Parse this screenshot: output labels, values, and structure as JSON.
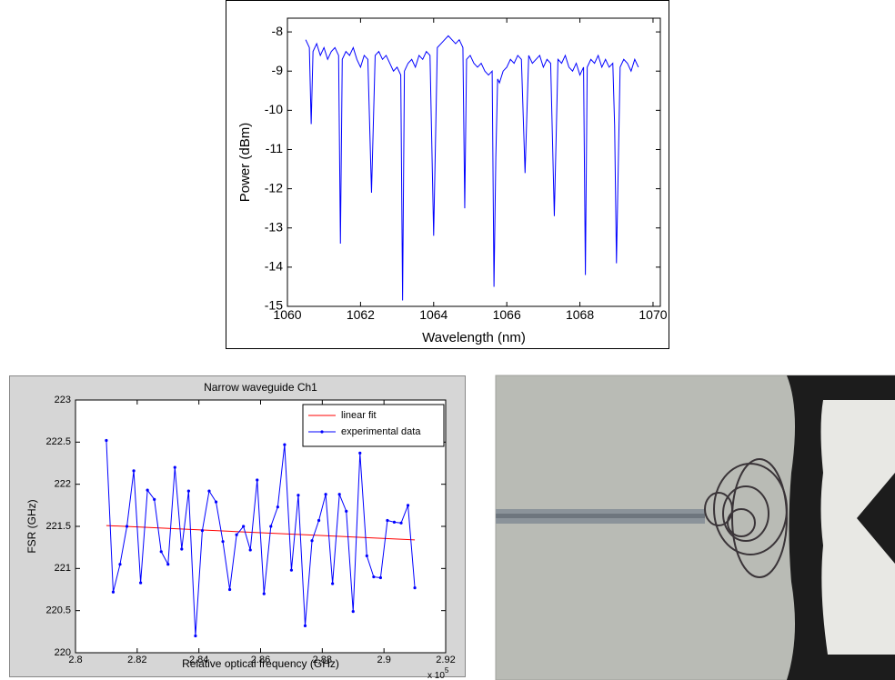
{
  "chart_data": [
    {
      "type": "line",
      "x_label": "Wavelength (nm)",
      "y_label": "Power (dBm)",
      "x": [
        1060.5,
        1060.6,
        1060.65,
        1060.7,
        1060.8,
        1060.9,
        1061.0,
        1061.1,
        1061.2,
        1061.3,
        1061.4,
        1061.45,
        1061.5,
        1061.6,
        1061.7,
        1061.8,
        1061.9,
        1062.0,
        1062.1,
        1062.2,
        1062.3,
        1062.4,
        1062.5,
        1062.6,
        1062.7,
        1062.8,
        1062.9,
        1063.0,
        1063.1,
        1063.15,
        1063.2,
        1063.3,
        1063.4,
        1063.5,
        1063.6,
        1063.7,
        1063.8,
        1063.9,
        1064.0,
        1064.1,
        1064.2,
        1064.3,
        1064.4,
        1064.5,
        1064.6,
        1064.7,
        1064.8,
        1064.85,
        1064.9,
        1065.0,
        1065.1,
        1065.2,
        1065.3,
        1065.4,
        1065.5,
        1065.6,
        1065.65,
        1065.7,
        1065.75,
        1065.8,
        1065.9,
        1066.0,
        1066.1,
        1066.2,
        1066.3,
        1066.4,
        1066.5,
        1066.6,
        1066.7,
        1066.8,
        1066.9,
        1067.0,
        1067.1,
        1067.2,
        1067.3,
        1067.4,
        1067.5,
        1067.6,
        1067.7,
        1067.8,
        1067.9,
        1068.0,
        1068.1,
        1068.15,
        1068.2,
        1068.3,
        1068.4,
        1068.5,
        1068.6,
        1068.7,
        1068.8,
        1068.9,
        1068.95,
        1069.0,
        1069.1,
        1069.2,
        1069.3,
        1069.4,
        1069.5,
        1069.6
      ],
      "series": [
        {
          "color": "#0000ff",
          "values": [
            -8.2,
            -8.4,
            -10.35,
            -8.5,
            -8.3,
            -8.6,
            -8.4,
            -8.7,
            -8.5,
            -8.4,
            -8.6,
            -13.4,
            -8.7,
            -8.5,
            -8.6,
            -8.4,
            -8.7,
            -8.9,
            -8.6,
            -8.7,
            -12.1,
            -8.6,
            -8.5,
            -8.7,
            -8.6,
            -8.8,
            -9.0,
            -8.9,
            -9.1,
            -14.85,
            -9.0,
            -8.8,
            -8.7,
            -8.9,
            -8.6,
            -8.7,
            -8.5,
            -8.6,
            -13.2,
            -8.4,
            -8.3,
            -8.2,
            -8.1,
            -8.2,
            -8.3,
            -8.2,
            -8.4,
            -12.5,
            -8.7,
            -8.6,
            -8.8,
            -8.9,
            -8.8,
            -9.0,
            -9.1,
            -9.0,
            -14.5,
            -11.2,
            -9.2,
            -9.3,
            -9.0,
            -8.9,
            -8.7,
            -8.8,
            -8.6,
            -8.7,
            -11.6,
            -8.6,
            -8.8,
            -8.7,
            -8.6,
            -8.9,
            -8.7,
            -8.8,
            -12.7,
            -8.7,
            -8.8,
            -8.6,
            -8.9,
            -9.0,
            -8.8,
            -9.1,
            -8.9,
            -14.2,
            -8.9,
            -8.7,
            -8.8,
            -8.6,
            -8.9,
            -8.7,
            -8.9,
            -8.8,
            -10.4,
            -13.9,
            -8.9,
            -8.7,
            -8.8,
            -9.0,
            -8.7,
            -8.9
          ]
        }
      ],
      "xlim": [
        1060,
        1070.2
      ],
      "xticks": [
        1060,
        1062,
        1064,
        1066,
        1068,
        1070
      ],
      "ylim": [
        -15,
        -7.65
      ],
      "yticks": [
        -15,
        -14,
        -13,
        -12,
        -11,
        -10,
        -9,
        -8
      ]
    },
    {
      "type": "line",
      "title": "Narrow waveguide Ch1",
      "x_label": "Relative optical frequency (GHz)",
      "y_label": "FSR (GHz)",
      "x_multiplier": "x 10",
      "x_multiplier_exp": "5",
      "series": [
        {
          "name": "linear fit",
          "color": "#ff0000",
          "x": [
            281000,
            291000
          ],
          "values": [
            221.51,
            221.34
          ]
        },
        {
          "name": "experimental data",
          "color": "#0000ff",
          "marker": true,
          "x": [
            281000,
            281222,
            281444,
            281667,
            281889,
            282111,
            282333,
            282556,
            282778,
            283000,
            283222,
            283444,
            283667,
            283889,
            284111,
            284333,
            284556,
            284778,
            285000,
            285222,
            285444,
            285667,
            285889,
            286111,
            286333,
            286556,
            286778,
            287000,
            287222,
            287444,
            287667,
            287889,
            288111,
            288333,
            288556,
            288778,
            289000,
            289222,
            289444,
            289667,
            289889,
            290111,
            290333,
            290556,
            290778,
            291000
          ],
          "values": [
            222.52,
            220.72,
            221.05,
            221.5,
            222.16,
            220.83,
            221.93,
            221.82,
            221.2,
            221.05,
            222.2,
            221.23,
            221.92,
            220.2,
            221.45,
            221.92,
            221.79,
            221.32,
            220.75,
            221.4,
            221.5,
            221.22,
            222.05,
            220.7,
            221.5,
            221.73,
            222.47,
            220.98,
            221.87,
            220.32,
            221.33,
            221.57,
            221.88,
            220.82,
            221.88,
            221.68,
            220.49,
            222.37,
            221.15,
            220.9,
            220.89,
            221.57,
            221.55,
            221.54,
            221.75,
            220.77
          ]
        }
      ],
      "xlim": [
        280000,
        292000
      ],
      "xticks": [
        {
          "value": 280000,
          "label": "2.8"
        },
        {
          "value": 282000,
          "label": "2.82"
        },
        {
          "value": 284000,
          "label": "2.84"
        },
        {
          "value": 286000,
          "label": "2.86"
        },
        {
          "value": 288000,
          "label": "2.88"
        },
        {
          "value": 290000,
          "label": "2.9"
        },
        {
          "value": 292000,
          "label": "2.92"
        }
      ],
      "ylim": [
        220,
        223
      ],
      "yticks": [
        220,
        220.5,
        221,
        221.5,
        222,
        222.5,
        223
      ],
      "legend": "top-right"
    }
  ]
}
